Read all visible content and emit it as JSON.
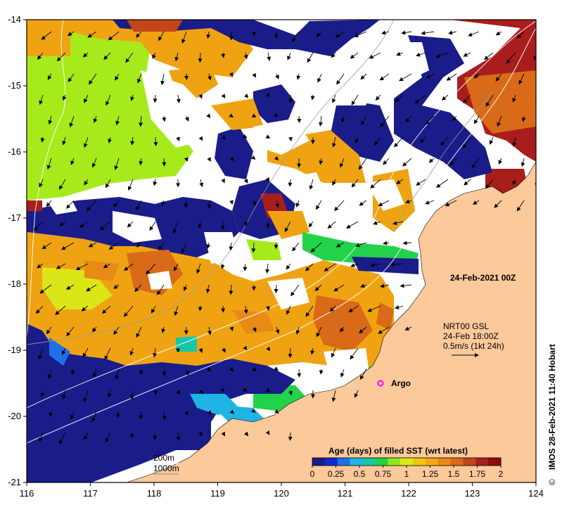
{
  "map": {
    "date_label": "24-Feb-2021 00Z",
    "credit": "IMOS 28-Feb-2021 11:40 Hobart",
    "copyright_symbol": "©",
    "current_legend": {
      "product": "NRT00 GSL",
      "time": "24-Feb 18:00Z",
      "scale": "0.5m/s (1kt 24h)"
    },
    "argo_label": "Argo",
    "contours": {
      "shallow": "200m",
      "deep": "1000m"
    },
    "x_ticks": [
      "116",
      "117",
      "118",
      "119",
      "120",
      "121",
      "122",
      "123",
      "124"
    ],
    "y_ticks": [
      "-14",
      "-15",
      "-16",
      "-17",
      "-18",
      "-19",
      "-20",
      "-21"
    ],
    "colorbar": {
      "title": "Age (days) of filled SST (wrt latest)",
      "ticks": [
        "0",
        "0.25",
        "0.5",
        "0.75",
        "1",
        "1.25",
        "1.5",
        "1.75",
        "2"
      ],
      "colors": [
        "#1a1c8a",
        "#0a2ccf",
        "#1f6fe8",
        "#1fb3e6",
        "#17c7a8",
        "#22d24a",
        "#8ee81c",
        "#d9ec1a",
        "#f2c40f",
        "#f3a813",
        "#e78a16",
        "#d96a18",
        "#c24619",
        "#a81e1c",
        "#8c0d10"
      ]
    },
    "colors": {
      "land": "#fcc99a",
      "no_data": "#ffffff",
      "argo": "#ff00ff"
    }
  }
}
